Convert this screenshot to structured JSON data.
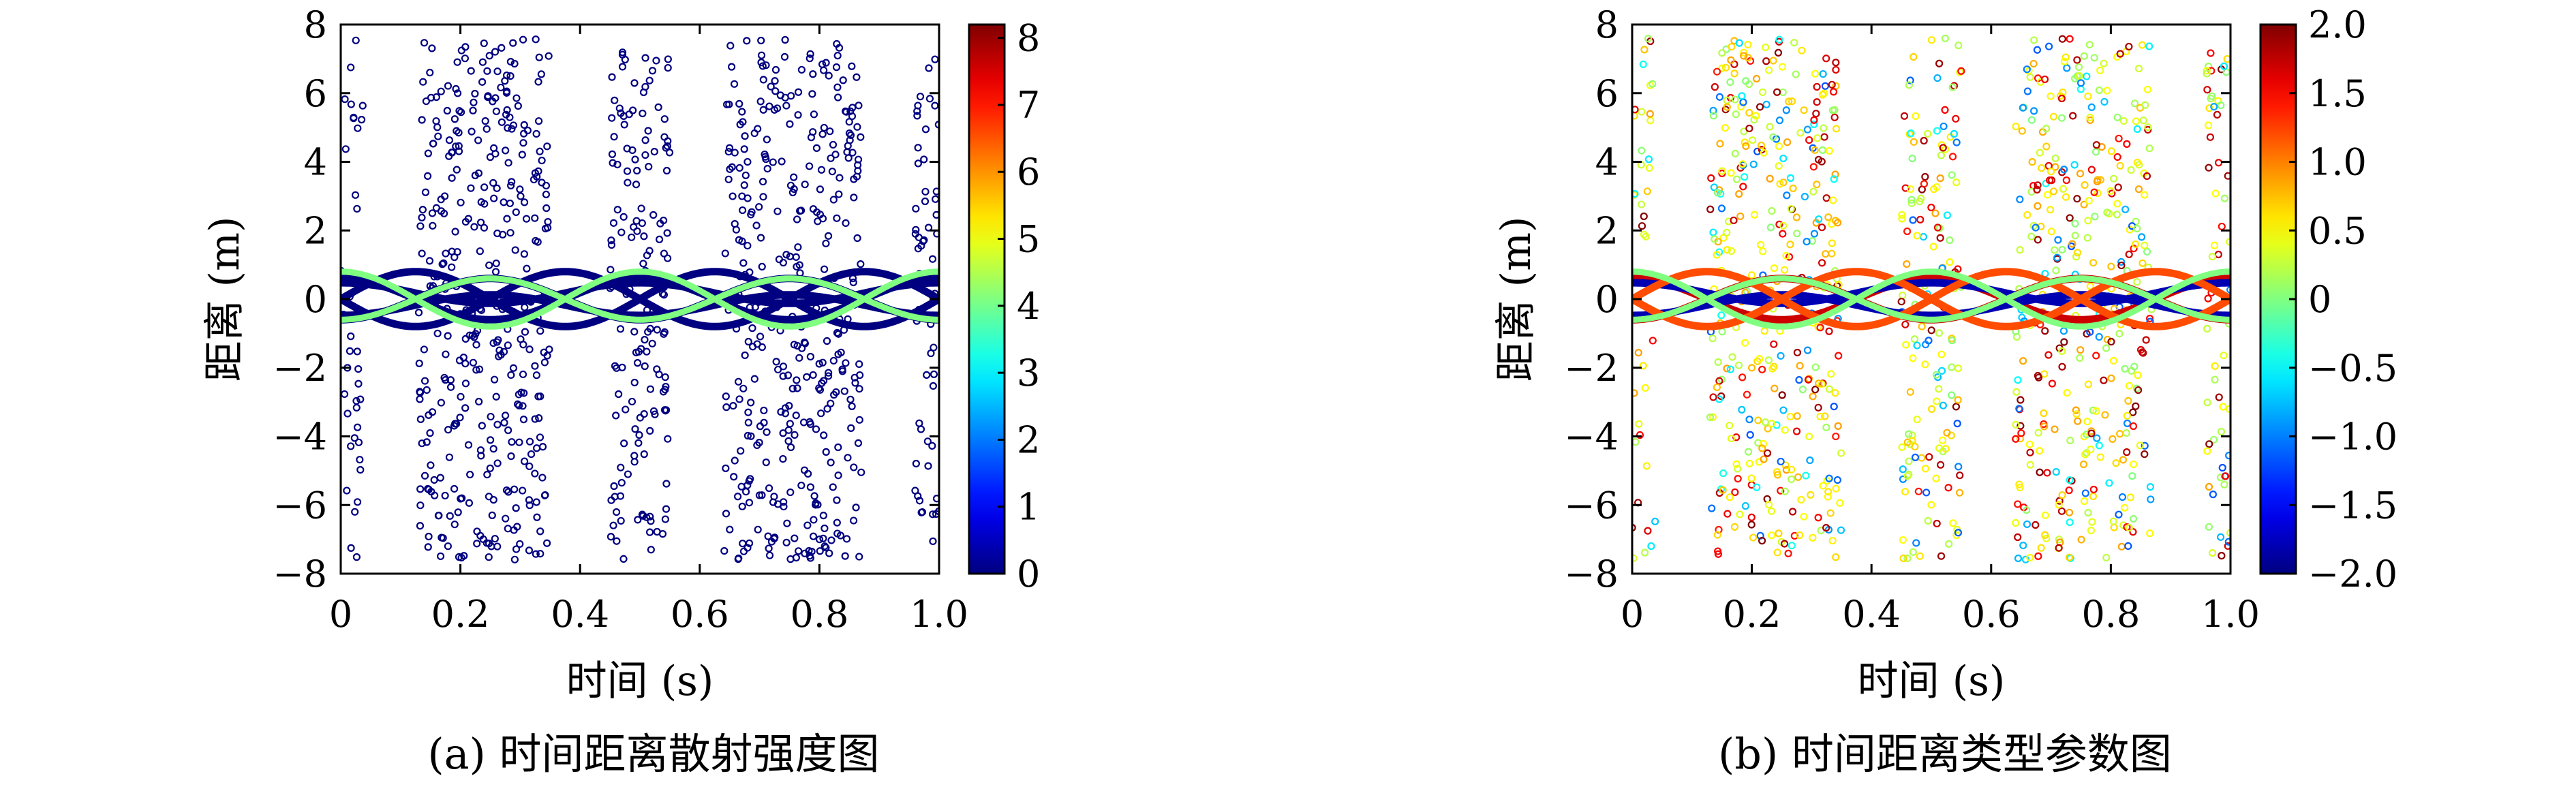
{
  "chart_data": [
    {
      "type": "scatter",
      "caption": "(a) 时间距离散射强度图",
      "xlabel": "时间 (s)",
      "ylabel": "距离 (m)",
      "xlim": [
        0,
        1.0
      ],
      "ylim": [
        -8,
        8
      ],
      "xticks": [
        "0",
        "0.2",
        "0.4",
        "0.6",
        "0.8",
        "1.0"
      ],
      "yticks": [
        "8",
        "6",
        "4",
        "2",
        "0",
        "−2",
        "−4",
        "−6",
        "−8"
      ],
      "colorbar": {
        "ticks": [
          "8",
          "7",
          "6",
          "5",
          "4",
          "3",
          "2",
          "1",
          "0"
        ],
        "range": [
          0,
          8.2
        ],
        "colormap": "jet"
      },
      "series": [
        {
          "curves": [
            {
              "amp": 0.6,
              "phase": 0.0,
              "color_value": 0.0
            },
            {
              "amp": -0.6,
              "phase": 0.0,
              "color_value": 0.0
            },
            {
              "amp": 0.3,
              "offset": 0.35,
              "phase": 0.0,
              "color_value": 0.0
            },
            {
              "amp": -0.3,
              "offset": -0.35,
              "phase": 0.0,
              "color_value": 0.0
            },
            {
              "amp": 0.8,
              "phase": 0.5,
              "color_value": 0.0
            },
            {
              "amp": -0.8,
              "phase": 0.5,
              "color_value": 0.0
            },
            {
              "amp": 0.8,
              "phase": 0.0,
              "color_value": 4.1
            },
            {
              "amp": -0.6,
              "phase": 0.0,
              "color_value": 4.1
            }
          ]
        },
        {
          "clusters": [
            {
              "x": [
                0.0,
                0.04
              ],
              "count": 40,
              "color_value": 0.0
            },
            {
              "x": [
                0.13,
                0.35
              ],
              "count": 380,
              "color_value": 0.0
            },
            {
              "x": [
                0.45,
                0.55
              ],
              "count": 160,
              "color_value": 0.0
            },
            {
              "x": [
                0.64,
                0.87
              ],
              "count": 380,
              "color_value": 0.0
            },
            {
              "x": [
                0.96,
                1.0
              ],
              "count": 60,
              "color_value": 0.0
            }
          ]
        }
      ]
    },
    {
      "type": "scatter",
      "caption": "(b) 时间距离类型参数图",
      "xlabel": "时间 (s)",
      "ylabel": "距离 (m)",
      "xlim": [
        0,
        1.0
      ],
      "ylim": [
        -8,
        8
      ],
      "xticks": [
        "0",
        "0.2",
        "0.4",
        "0.6",
        "0.8",
        "1.0"
      ],
      "yticks": [
        "8",
        "6",
        "4",
        "2",
        "0",
        "−2",
        "−4",
        "−6",
        "−8"
      ],
      "colorbar": {
        "ticks": [
          "2.0",
          "1.5",
          "1.0",
          "0.5",
          "0",
          "−0.5",
          "−1.0",
          "−1.5",
          "−2.0"
        ],
        "range": [
          -2.0,
          2.0
        ],
        "colormap": "jet"
      },
      "series": [
        {
          "curves": [
            {
              "amp": 0.6,
              "phase": 0.0,
              "color_value": 1.7
            },
            {
              "amp": -0.6,
              "phase": 0.0,
              "color_value": 1.7
            },
            {
              "amp": 0.3,
              "offset": 0.35,
              "phase": 0.0,
              "color_value": -1.8
            },
            {
              "amp": -0.3,
              "offset": -0.35,
              "phase": 0.0,
              "color_value": -1.8
            },
            {
              "amp": 0.8,
              "phase": 0.5,
              "color_value": 1.2
            },
            {
              "amp": -0.8,
              "phase": 0.5,
              "color_value": 1.2
            },
            {
              "amp": 0.8,
              "phase": 0.0,
              "color_value": 0.0
            },
            {
              "amp": -0.6,
              "phase": 0.0,
              "color_value": 0.0
            }
          ]
        },
        {
          "clusters": [
            {
              "x": [
                0.0,
                0.04
              ],
              "count": 40,
              "color_value": "mixed"
            },
            {
              "x": [
                0.13,
                0.35
              ],
              "count": 380,
              "color_value": "mixed"
            },
            {
              "x": [
                0.45,
                0.55
              ],
              "count": 160,
              "color_value": "mixed"
            },
            {
              "x": [
                0.64,
                0.87
              ],
              "count": 380,
              "color_value": "mixed"
            },
            {
              "x": [
                0.96,
                1.0
              ],
              "count": 60,
              "color_value": "mixed"
            }
          ]
        }
      ]
    }
  ]
}
